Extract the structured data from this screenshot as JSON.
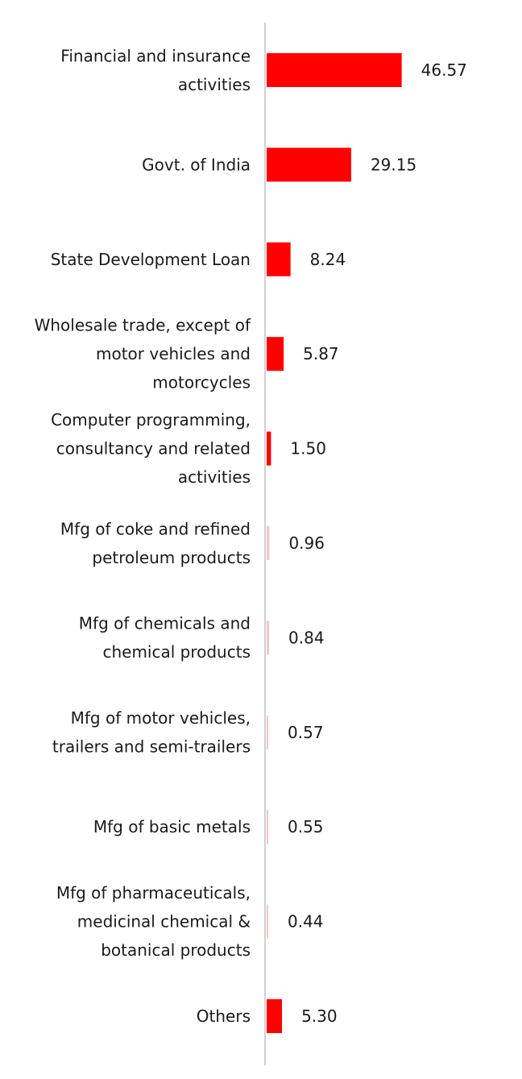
{
  "chart_data": {
    "type": "bar",
    "orientation": "horizontal",
    "categories": [
      [
        "Financial and insurance",
        "activities"
      ],
      [
        "Govt. of India"
      ],
      [
        "State Development Loan"
      ],
      [
        "Wholesale trade, except of",
        "motor vehicles and",
        "motorcycles"
      ],
      [
        "Computer programming,",
        "consultancy and related",
        "activities"
      ],
      [
        "Mfg of coke and refined",
        "petroleum products"
      ],
      [
        "Mfg of chemicals and",
        "chemical products"
      ],
      [
        "Mfg of motor vehicles,",
        "trailers and semi-trailers"
      ],
      [
        "Mfg of basic metals"
      ],
      [
        "Mfg of pharmaceuticals,",
        "medicinal chemical &",
        "botanical products"
      ],
      [
        "Others"
      ]
    ],
    "values": [
      46.57,
      29.15,
      8.24,
      5.87,
      1.5,
      0.96,
      0.84,
      0.57,
      0.55,
      0.44,
      5.3
    ],
    "value_labels": [
      "46.57",
      "29.15",
      "8.24",
      "5.87",
      "1.50",
      "0.96",
      "0.84",
      "0.57",
      "0.55",
      "0.44",
      "5.30"
    ],
    "bar_color": "#ff0000",
    "faint_bar_color": "#f4c6c6",
    "axis_color": "#d0d0d0",
    "title": "",
    "xlabel": "",
    "ylabel": "",
    "xlim": [
      0,
      100
    ],
    "grid": false,
    "legend": "none"
  }
}
